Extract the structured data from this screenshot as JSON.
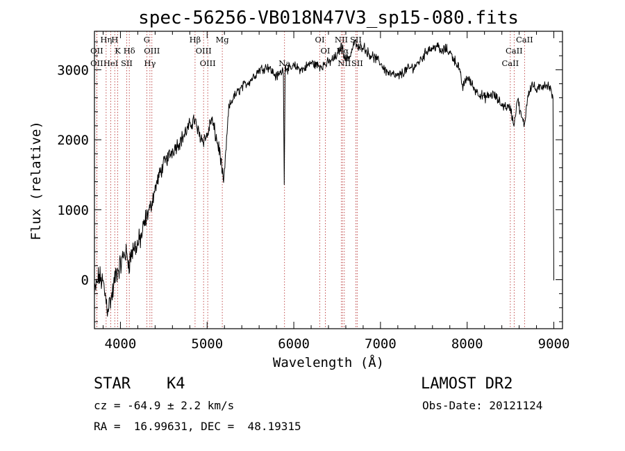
{
  "chart_data": {
    "type": "line",
    "title": "spec-56256-VB018N47V3_sp15-080.fits",
    "xlabel": "Wavelength (Å)",
    "ylabel": "Flux (relative)",
    "xlim": [
      3700,
      9100
    ],
    "ylim": [
      -700,
      3550
    ],
    "xticks": [
      4000,
      5000,
      6000,
      7000,
      8000,
      9000
    ],
    "xtick_labels": [
      "4000",
      "5000",
      "6000",
      "7000",
      "8000",
      "9000"
    ],
    "yticks": [
      0,
      1000,
      2000,
      3000
    ],
    "ytick_labels": [
      "0",
      "1000",
      "2000",
      "3000"
    ],
    "spectrum": {
      "name": "flux",
      "x": [
        3700,
        3750,
        3800,
        3850,
        3900,
        3950,
        4000,
        4050,
        4100,
        4150,
        4200,
        4250,
        4300,
        4350,
        4400,
        4450,
        4500,
        4600,
        4700,
        4800,
        4850,
        4900,
        4950,
        5000,
        5050,
        5100,
        5150,
        5190,
        5250,
        5300,
        5400,
        5500,
        5600,
        5700,
        5800,
        5880,
        5890,
        5900,
        5950,
        6000,
        6100,
        6200,
        6300,
        6400,
        6500,
        6550,
        6600,
        6650,
        6700,
        6750,
        6800,
        6850,
        6900,
        6950,
        7000,
        7050,
        7100,
        7200,
        7300,
        7400,
        7500,
        7550,
        7600,
        7650,
        7700,
        7750,
        7800,
        7850,
        7900,
        7950,
        8000,
        8050,
        8100,
        8200,
        8300,
        8400,
        8500,
        8540,
        8580,
        8620,
        8660,
        8700,
        8750,
        8800,
        8850,
        8900,
        8950,
        8990,
        8998,
        9000
      ],
      "y": [
        -200,
        50,
        -50,
        -400,
        -250,
        100,
        200,
        400,
        250,
        450,
        500,
        650,
        900,
        1050,
        1300,
        1500,
        1650,
        1850,
        2000,
        2200,
        2300,
        2100,
        2000,
        2050,
        2300,
        2050,
        1800,
        1350,
        2450,
        2600,
        2750,
        2850,
        3000,
        3050,
        2900,
        3000,
        1400,
        3050,
        3000,
        3050,
        3000,
        3100,
        3050,
        3100,
        3200,
        3350,
        3150,
        3200,
        3400,
        3300,
        3350,
        3250,
        3200,
        3150,
        3100,
        3000,
        2950,
        2900,
        3000,
        3050,
        3200,
        3300,
        3300,
        3350,
        3250,
        3300,
        3250,
        3150,
        3050,
        2750,
        2900,
        2800,
        2700,
        2600,
        2650,
        2500,
        2450,
        2200,
        2600,
        2350,
        2200,
        2650,
        2800,
        2700,
        2750,
        2800,
        2750,
        2600,
        500,
        -10
      ]
    },
    "line_markers": [
      {
        "label": "OII",
        "x": 3727,
        "row": 3
      },
      {
        "label": "OII",
        "x": 3727,
        "row": 2
      },
      {
        "label": "Hη",
        "x": 3835,
        "row": 1
      },
      {
        "label": "H",
        "x": 3934,
        "row": 1
      },
      {
        "label": "K",
        "x": 3969,
        "row": 2
      },
      {
        "label": "HeI",
        "x": 3889,
        "row": 3
      },
      {
        "label": "SII",
        "x": 4072,
        "row": 3
      },
      {
        "label": "Hδ",
        "x": 4102,
        "row": 2
      },
      {
        "label": "G",
        "x": 4304,
        "row": 1
      },
      {
        "label": "OIII",
        "x": 4363,
        "row": 2
      },
      {
        "label": "Hγ",
        "x": 4340,
        "row": 3
      },
      {
        "label": "Hβ",
        "x": 4861,
        "row": 1
      },
      {
        "label": "OIII",
        "x": 4959,
        "row": 2
      },
      {
        "label": "OIII",
        "x": 5007,
        "row": 3
      },
      {
        "label": "Mg",
        "x": 5175,
        "row": 1
      },
      {
        "label": "Na",
        "x": 5893,
        "row": 3
      },
      {
        "label": "OI",
        "x": 6300,
        "row": 1
      },
      {
        "label": "OI",
        "x": 6364,
        "row": 2
      },
      {
        "label": "NII",
        "x": 6548,
        "row": 1
      },
      {
        "label": "NII",
        "x": 6583,
        "row": 3
      },
      {
        "label": "Hα",
        "x": 6563,
        "row": 2
      },
      {
        "label": "SII",
        "x": 6716,
        "row": 1
      },
      {
        "label": "SII",
        "x": 6731,
        "row": 3
      },
      {
        "label": "CaII",
        "x": 8498,
        "row": 3
      },
      {
        "label": "CaII",
        "x": 8542,
        "row": 2
      },
      {
        "label": "CaII",
        "x": 8662,
        "row": 1
      }
    ]
  },
  "info": {
    "class_label": "STAR",
    "subclass": "K4",
    "survey": "LAMOST DR2",
    "redshift_text": "cz = -64.9 ± 2.2 km/s",
    "obs_date_text": "Obs-Date: 20121124",
    "coords_text": "RA =  16.99631, DEC =  48.19315"
  },
  "colors": {
    "spectrum": "#000000",
    "marker_line": "#b22222",
    "axes": "#000000"
  }
}
